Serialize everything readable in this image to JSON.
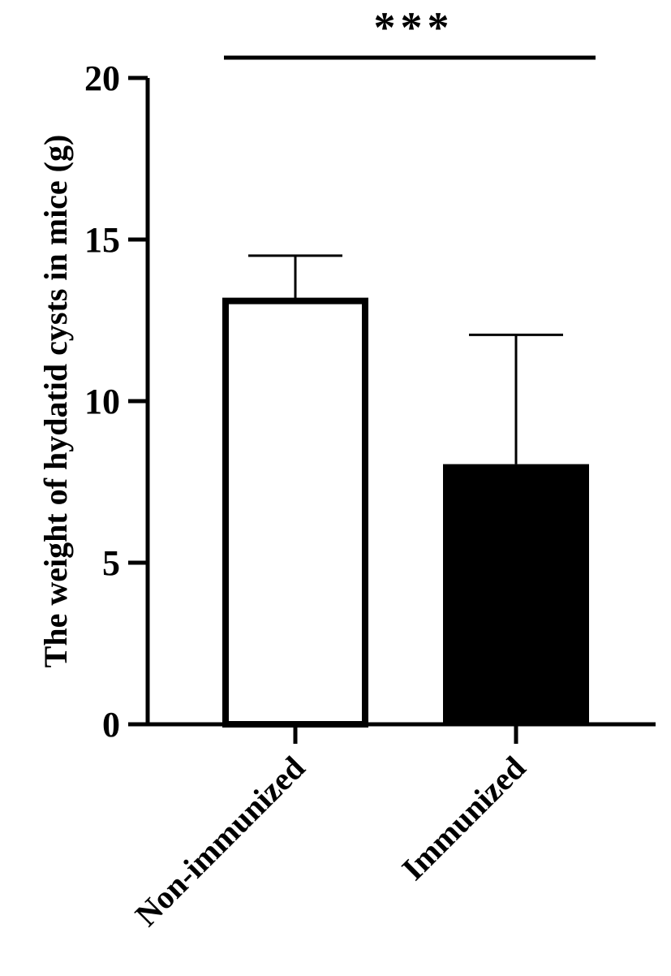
{
  "chart_data": {
    "type": "bar",
    "title": "",
    "xlabel": "",
    "ylabel": "The weight of hydatid cysts in mice (g)",
    "categories": [
      "Non-immunized",
      "Immunized"
    ],
    "values": [
      13.1,
      8.05
    ],
    "errors": [
      1.4,
      4.0
    ],
    "bar_styles": [
      "outline",
      "filled"
    ],
    "ylim": [
      0,
      20
    ],
    "yticks": [
      "0",
      "5",
      "10",
      "15",
      "20"
    ],
    "significance": "***",
    "grid": false,
    "legend": "none",
    "colors": {
      "fill": "#000000",
      "outline": "#000000",
      "background": "#ffffff"
    }
  }
}
